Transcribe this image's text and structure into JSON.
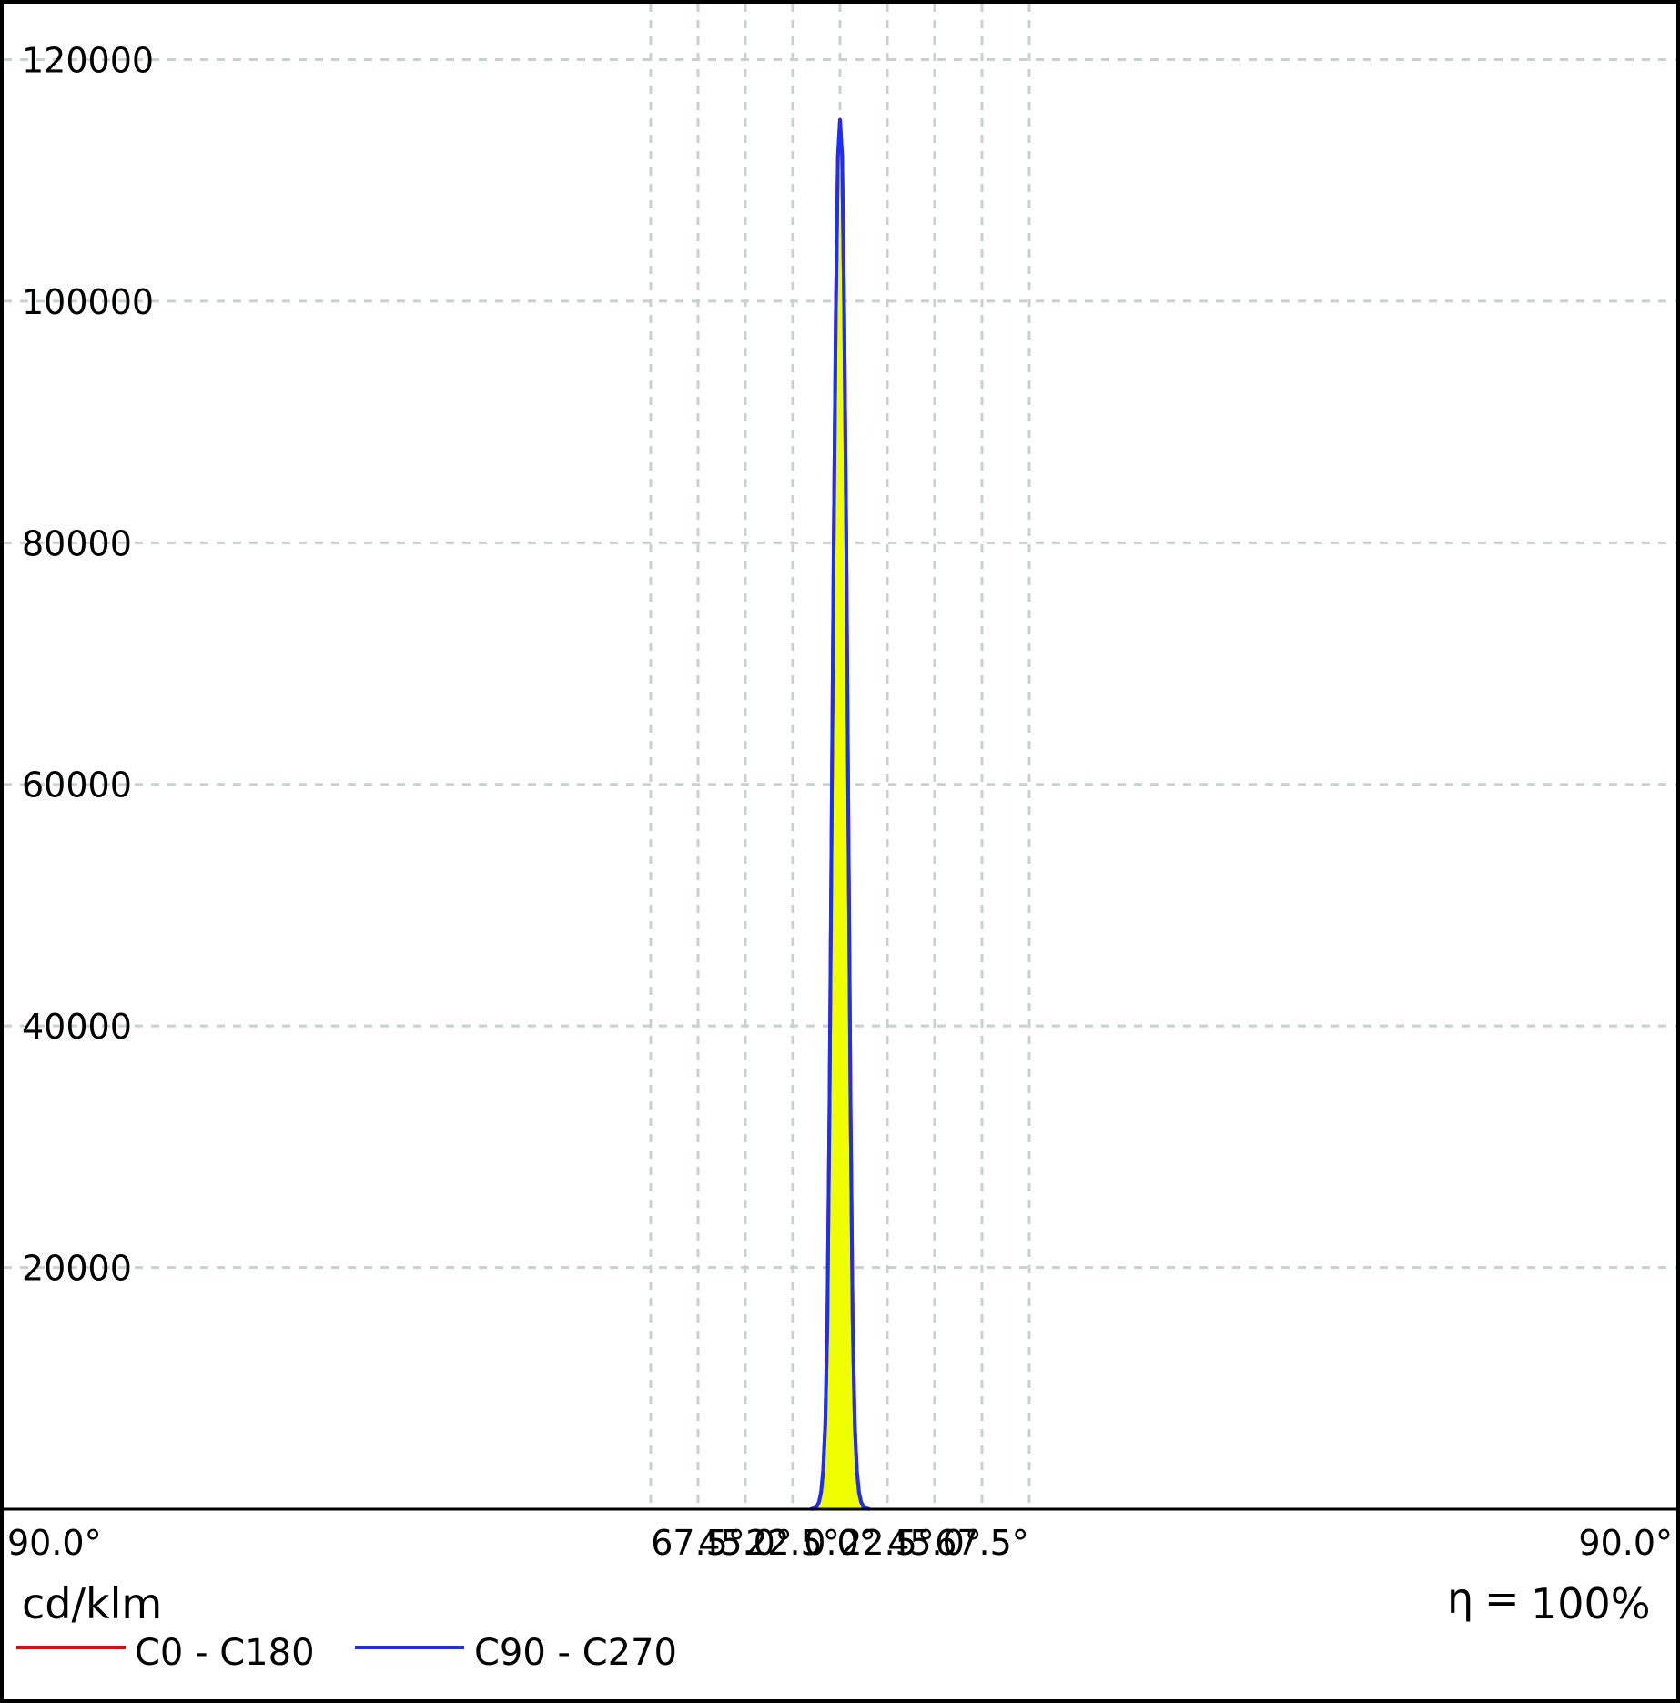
{
  "chart_data": {
    "type": "line",
    "title": "",
    "ylabel": "cd/klm",
    "xlabel": "",
    "efficiency_symbol": "η",
    "efficiency_equals": "=",
    "efficiency_value": "100%",
    "x_tick_labels": [
      "90.0°",
      "67.5°",
      "45.0°",
      "22.5°",
      "0.0°",
      "22.5°",
      "45.0°",
      "67.5°",
      "90.0°"
    ],
    "x_ticks": [
      -90,
      -67.5,
      -45,
      -22.5,
      0,
      22.5,
      45,
      67.5,
      90
    ],
    "y_tick_labels": [
      "120000",
      "100000",
      "80000",
      "60000",
      "40000",
      "20000"
    ],
    "y_ticks": [
      120000,
      100000,
      80000,
      60000,
      40000,
      20000
    ],
    "xlim": [
      -90,
      90
    ],
    "ylim": [
      0,
      120000
    ],
    "grid": true,
    "legend_placement": "bottom-left",
    "fill_color": "#f0ff00",
    "grid_color": "#c8d0d0",
    "series": [
      {
        "name": "C0 - C180",
        "color": "#ff0000",
        "x": [
          -14,
          -12,
          -11,
          -10,
          -9,
          -8,
          -7,
          -6,
          -5,
          -4,
          -3,
          -2,
          -1,
          0,
          1,
          2,
          3,
          4,
          5,
          6,
          7,
          8,
          9,
          10,
          11,
          12,
          14
        ],
        "y": [
          0,
          100,
          250,
          600,
          1400,
          3200,
          7000,
          15500,
          33000,
          57000,
          80000,
          99000,
          112000,
          115000,
          112000,
          99000,
          80000,
          57000,
          33000,
          15500,
          7000,
          3200,
          1400,
          600,
          250,
          100,
          0
        ]
      },
      {
        "name": "C90 - C270",
        "color": "#1a2eff",
        "x": [
          -14,
          -12,
          -11,
          -10,
          -9,
          -8,
          -7,
          -6,
          -5,
          -4,
          -3,
          -2,
          -1,
          0,
          1,
          2,
          3,
          4,
          5,
          6,
          7,
          8,
          9,
          10,
          11,
          12,
          14
        ],
        "y": [
          0,
          100,
          250,
          600,
          1400,
          3200,
          7000,
          15500,
          33000,
          57000,
          80000,
          99000,
          112000,
          115000,
          112000,
          99000,
          80000,
          57000,
          33000,
          15500,
          7000,
          3200,
          1400,
          600,
          250,
          100,
          0
        ]
      }
    ]
  }
}
